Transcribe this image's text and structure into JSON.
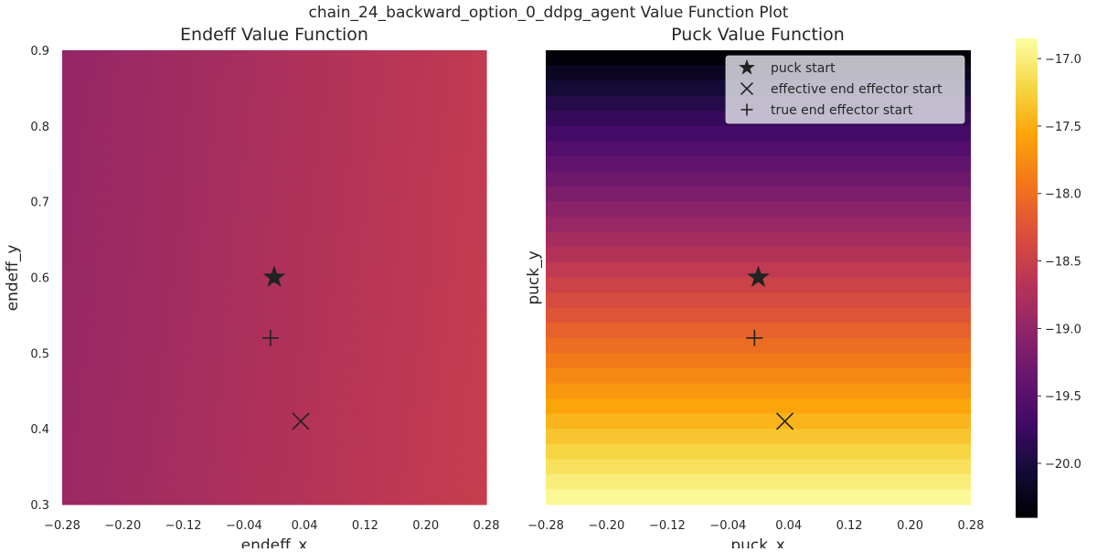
{
  "suptitle": "chain_24_backward_option_0_ddpg_agent Value Function Plot",
  "colormap": "inferno",
  "chart_data": [
    {
      "type": "heatmap",
      "title": "Endeff Value Function",
      "xlabel": "endeff_x",
      "ylabel": "endeff_y",
      "xlim": [
        -0.28,
        0.28
      ],
      "ylim": [
        0.3,
        0.9
      ],
      "xticks": [
        "−0.28",
        "−0.20",
        "−0.12",
        "−0.04",
        "0.04",
        "0.12",
        "0.20",
        "0.28"
      ],
      "yticks": [
        "0.3",
        "0.4",
        "0.5",
        "0.6",
        "0.7",
        "0.8",
        "0.9"
      ],
      "grid": false,
      "value_model": {
        "description": "values vary mostly along x",
        "left_value": -18.95,
        "right_value": -18.55,
        "bottom_value": -18.7,
        "top_value": -18.8
      },
      "markers": [
        {
          "name": "puck start",
          "symbol": "star",
          "x": 0.0,
          "y": 0.6
        },
        {
          "name": "true end effector start",
          "symbol": "plus",
          "x": -0.005,
          "y": 0.52
        },
        {
          "name": "effective end effector start",
          "symbol": "x",
          "x": 0.035,
          "y": 0.41
        }
      ]
    },
    {
      "type": "heatmap",
      "title": "Puck Value Function",
      "xlabel": "puck_x",
      "ylabel": "puck_y",
      "xlim": [
        -0.28,
        0.28
      ],
      "ylim": [
        0.3,
        0.9
      ],
      "xticks": [
        "−0.28",
        "−0.20",
        "−0.12",
        "−0.04",
        "0.04",
        "0.12",
        "0.20",
        "0.28"
      ],
      "yticks": [],
      "grid": false,
      "value_model": {
        "description": "values vary mostly along y, in horizontal bands",
        "bottom_value": -16.9,
        "top_value": -20.35,
        "bands": 30
      },
      "markers": [
        {
          "name": "puck start",
          "symbol": "star",
          "x": 0.0,
          "y": 0.6
        },
        {
          "name": "true end effector start",
          "symbol": "plus",
          "x": -0.005,
          "y": 0.52
        },
        {
          "name": "effective end effector start",
          "symbol": "x",
          "x": 0.035,
          "y": 0.41
        }
      ],
      "legend": {
        "placement": "top-right",
        "entries": [
          {
            "symbol": "star",
            "label": "puck start"
          },
          {
            "symbol": "x",
            "label": "effective end effector start"
          },
          {
            "symbol": "plus",
            "label": "true end effector start"
          }
        ]
      }
    }
  ],
  "colorbar": {
    "range": [
      -20.4,
      -16.85
    ],
    "ticks": [
      -17.0,
      -17.5,
      -18.0,
      -18.5,
      -19.0,
      -19.5,
      -20.0
    ],
    "tick_labels": [
      "−17.0",
      "−17.5",
      "−18.0",
      "−18.5",
      "−19.0",
      "−19.5",
      "−20.0"
    ]
  }
}
